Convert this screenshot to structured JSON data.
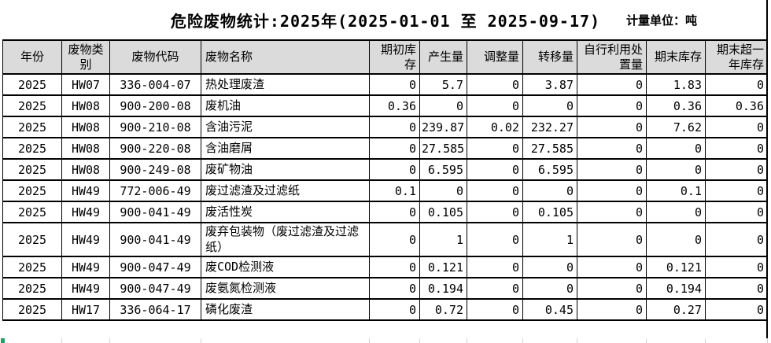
{
  "title": "危险废物统计:2025年(2025-01-01 至 2025-09-17)",
  "unit_label": "计量单位：吨",
  "table": {
    "columns": [
      "年份",
      "废物类别",
      "废物代码",
      "废物名称",
      "期初库存",
      "产生量",
      "调整量",
      "转移量",
      "自行利用处\n置量",
      "期末库存",
      "期末超一\n年库存"
    ],
    "rows": [
      [
        "2025",
        "HW07",
        "336-004-07",
        "热处理废渣",
        "0",
        "5.7",
        "0",
        "3.87",
        "0",
        "1.83",
        "0"
      ],
      [
        "2025",
        "HW08",
        "900-200-08",
        "废机油",
        "0.36",
        "0",
        "0",
        "0",
        "0",
        "0.36",
        "0.36"
      ],
      [
        "2025",
        "HW08",
        "900-210-08",
        "含油污泥",
        "0",
        "239.87",
        "0.02",
        "232.27",
        "0",
        "7.62",
        "0"
      ],
      [
        "2025",
        "HW08",
        "900-220-08",
        "含油磨屑",
        "0",
        "27.585",
        "0",
        "27.585",
        "0",
        "0",
        "0"
      ],
      [
        "2025",
        "HW08",
        "900-249-08",
        "废矿物油",
        "0",
        "6.595",
        "0",
        "6.595",
        "0",
        "0",
        "0"
      ],
      [
        "2025",
        "HW49",
        "772-006-49",
        "废过滤渣及过滤纸",
        "0.1",
        "0",
        "0",
        "0",
        "0",
        "0.1",
        "0"
      ],
      [
        "2025",
        "HW49",
        "900-041-49",
        "废活性炭",
        "0",
        "0.105",
        "0",
        "0.105",
        "0",
        "0",
        "0"
      ],
      [
        "2025",
        "HW49",
        "900-041-49",
        "废弃包装物（废过滤渣及过滤纸）",
        "0",
        "1",
        "0",
        "1",
        "0",
        "0",
        "0"
      ],
      [
        "2025",
        "HW49",
        "900-047-49",
        "废COD检测液",
        "0",
        "0.121",
        "0",
        "0",
        "0",
        "0.121",
        "0"
      ],
      [
        "2025",
        "HW49",
        "900-047-49",
        "废氨氮检测液",
        "0",
        "0.194",
        "0",
        "0",
        "0",
        "0.194",
        "0"
      ],
      [
        "2025",
        "HW17",
        "336-064-17",
        "磷化废渣",
        "0",
        "0.72",
        "0",
        "0.45",
        "0",
        "0.27",
        "0"
      ]
    ]
  },
  "colors": {
    "header_bg": "#dbdbdb",
    "border": "#000000",
    "green_mark": "#21a366"
  }
}
